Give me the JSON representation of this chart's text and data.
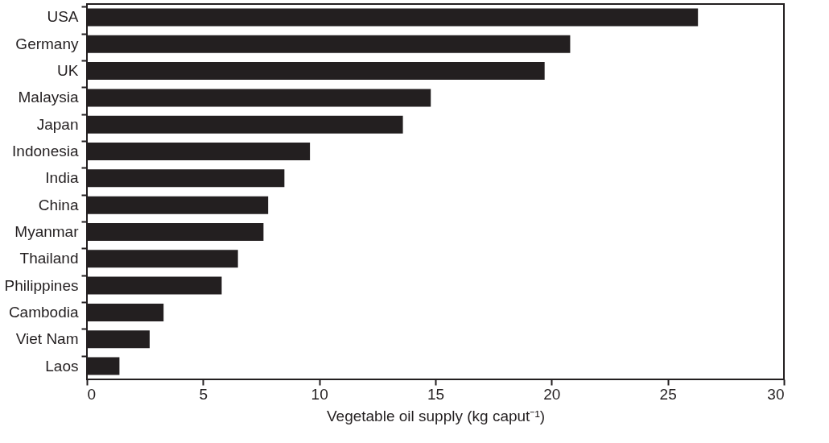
{
  "chart_data": {
    "type": "bar",
    "orientation": "horizontal",
    "xlabel": "Vegetable oil supply (kg caput⁻¹)",
    "categories": [
      "USA",
      "Germany",
      "UK",
      "Malaysia",
      "Japan",
      "Indonesia",
      "India",
      "China",
      "Myanmar",
      "Thailand",
      "Philippines",
      "Cambodia",
      "Viet Nam",
      "Laos"
    ],
    "values": [
      26.3,
      20.8,
      19.7,
      14.8,
      13.6,
      9.6,
      8.5,
      7.8,
      7.6,
      6.5,
      5.8,
      3.3,
      2.7,
      1.4
    ],
    "color": "#231f20",
    "xlim": [
      0,
      30
    ],
    "xticks": [
      0,
      5,
      10,
      15,
      20,
      25,
      30
    ],
    "grid": false
  }
}
